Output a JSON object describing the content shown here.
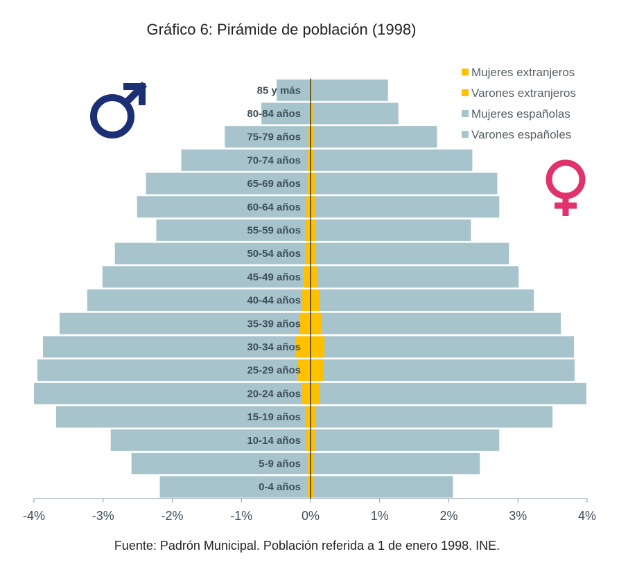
{
  "chart_data": {
    "type": "bar",
    "orientation": "horizontal",
    "title": "Gráfico 6: Pirámide de población (1998)",
    "source": "Fuente: Padrón Municipal. Población referida a 1 de enero 1998. INE.",
    "categories": [
      "0-4 años",
      "5-9 años",
      "10-14 años",
      "15-19 años",
      "20-24 años",
      "25-29 años",
      "30-34 años",
      "35-39 años",
      "40-44 años",
      "45-49 años",
      "50-54 años",
      "55-59 años",
      "60-64 años",
      "65-69 años",
      "70-74 años",
      "75-79 años",
      "80-84 años",
      "85 y más"
    ],
    "xlim": [
      -4,
      4
    ],
    "x_ticks": [
      -4,
      -3,
      -2,
      -1,
      0,
      1,
      2,
      3,
      4
    ],
    "x_tick_labels": [
      "-4%",
      "-3%",
      "-2%",
      "-1%",
      "0%",
      "1%",
      "2%",
      "3%",
      "4%"
    ],
    "series": [
      {
        "name": "Mujeres extranjeros",
        "color": "#FFC000",
        "values": [
          0.04,
          0.05,
          0.06,
          0.07,
          0.12,
          0.18,
          0.2,
          0.16,
          0.12,
          0.09,
          0.08,
          0.07,
          0.06,
          0.06,
          0.05,
          0.04,
          0.03,
          0.02
        ]
      },
      {
        "name": "Varones extranjeros",
        "color": "#FFC000",
        "values": [
          -0.04,
          -0.05,
          -0.06,
          -0.08,
          -0.12,
          -0.19,
          -0.22,
          -0.16,
          -0.12,
          -0.1,
          -0.08,
          -0.07,
          -0.06,
          -0.05,
          -0.04,
          -0.03,
          -0.02,
          -0.01
        ]
      },
      {
        "name": "Mujeres españolas",
        "color": "#A7C4CC",
        "values": [
          2.06,
          2.45,
          2.73,
          3.5,
          3.99,
          3.82,
          3.81,
          3.62,
          3.23,
          3.01,
          2.87,
          2.32,
          2.73,
          2.7,
          2.34,
          1.83,
          1.27,
          1.12
        ]
      },
      {
        "name": "Varones españoles",
        "color": "#A7C4CC",
        "values": [
          -2.18,
          -2.59,
          -2.89,
          -3.68,
          -4.0,
          -3.95,
          -3.87,
          -3.63,
          -3.23,
          -3.01,
          -2.83,
          -2.23,
          -2.51,
          -2.38,
          -1.87,
          -1.24,
          -0.71,
          -0.49
        ]
      }
    ],
    "legend_position": "top-right"
  },
  "symbols": {
    "male": {
      "glyph": "♂",
      "color": "#1B2F75"
    },
    "female": {
      "glyph": "♀",
      "color": "#E0336E"
    }
  }
}
